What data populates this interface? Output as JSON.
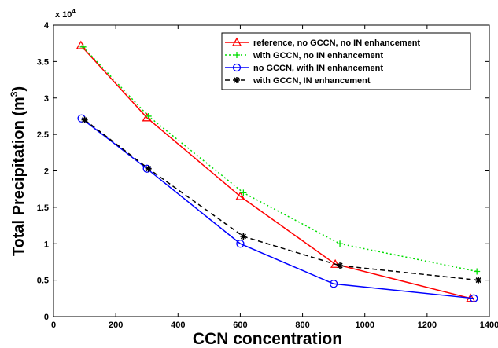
{
  "chart_data": {
    "type": "line",
    "xlabel": "CCN concentration",
    "ylabel": "Total Precipitation (m",
    "ylabel_sup": "3",
    "ylabel_end": ")",
    "y_scale_label": "x 10",
    "y_scale_exponent": "4",
    "xlim": [
      0,
      1400
    ],
    "xticks": [
      0,
      200,
      400,
      600,
      800,
      1000,
      1200,
      1400
    ],
    "ylim": [
      0,
      4
    ],
    "yticks": [
      0,
      0.5,
      1,
      1.5,
      2,
      2.5,
      3,
      3.5,
      4
    ],
    "legend": "upper right",
    "series": [
      {
        "name": "reference, no GCCN, no IN enhancement",
        "color": "#ff0000",
        "marker": "triangle",
        "linestyle": "solid",
        "x": [
          88,
          300,
          600,
          905,
          1340
        ],
        "values": [
          3.72,
          2.73,
          1.65,
          0.72,
          0.25
        ]
      },
      {
        "name": "with GCCN, no IN enhancement",
        "color": "#00dd00",
        "marker": "plus",
        "linestyle": "dotted",
        "x": [
          95,
          305,
          610,
          920,
          1360
        ],
        "values": [
          3.7,
          2.75,
          1.7,
          1.0,
          0.62
        ]
      },
      {
        "name": "no GCCN, with IN enhancement",
        "color": "#0000ff",
        "marker": "circle",
        "linestyle": "solid",
        "x": [
          90,
          300,
          600,
          900,
          1350
        ],
        "values": [
          2.72,
          2.03,
          1.0,
          0.45,
          0.25
        ]
      },
      {
        "name": "with GCCN, IN enhancement",
        "color": "#000000",
        "marker": "star",
        "linestyle": "dashed",
        "x": [
          100,
          305,
          610,
          920,
          1365
        ],
        "values": [
          2.7,
          2.03,
          1.1,
          0.7,
          0.5
        ]
      }
    ]
  }
}
